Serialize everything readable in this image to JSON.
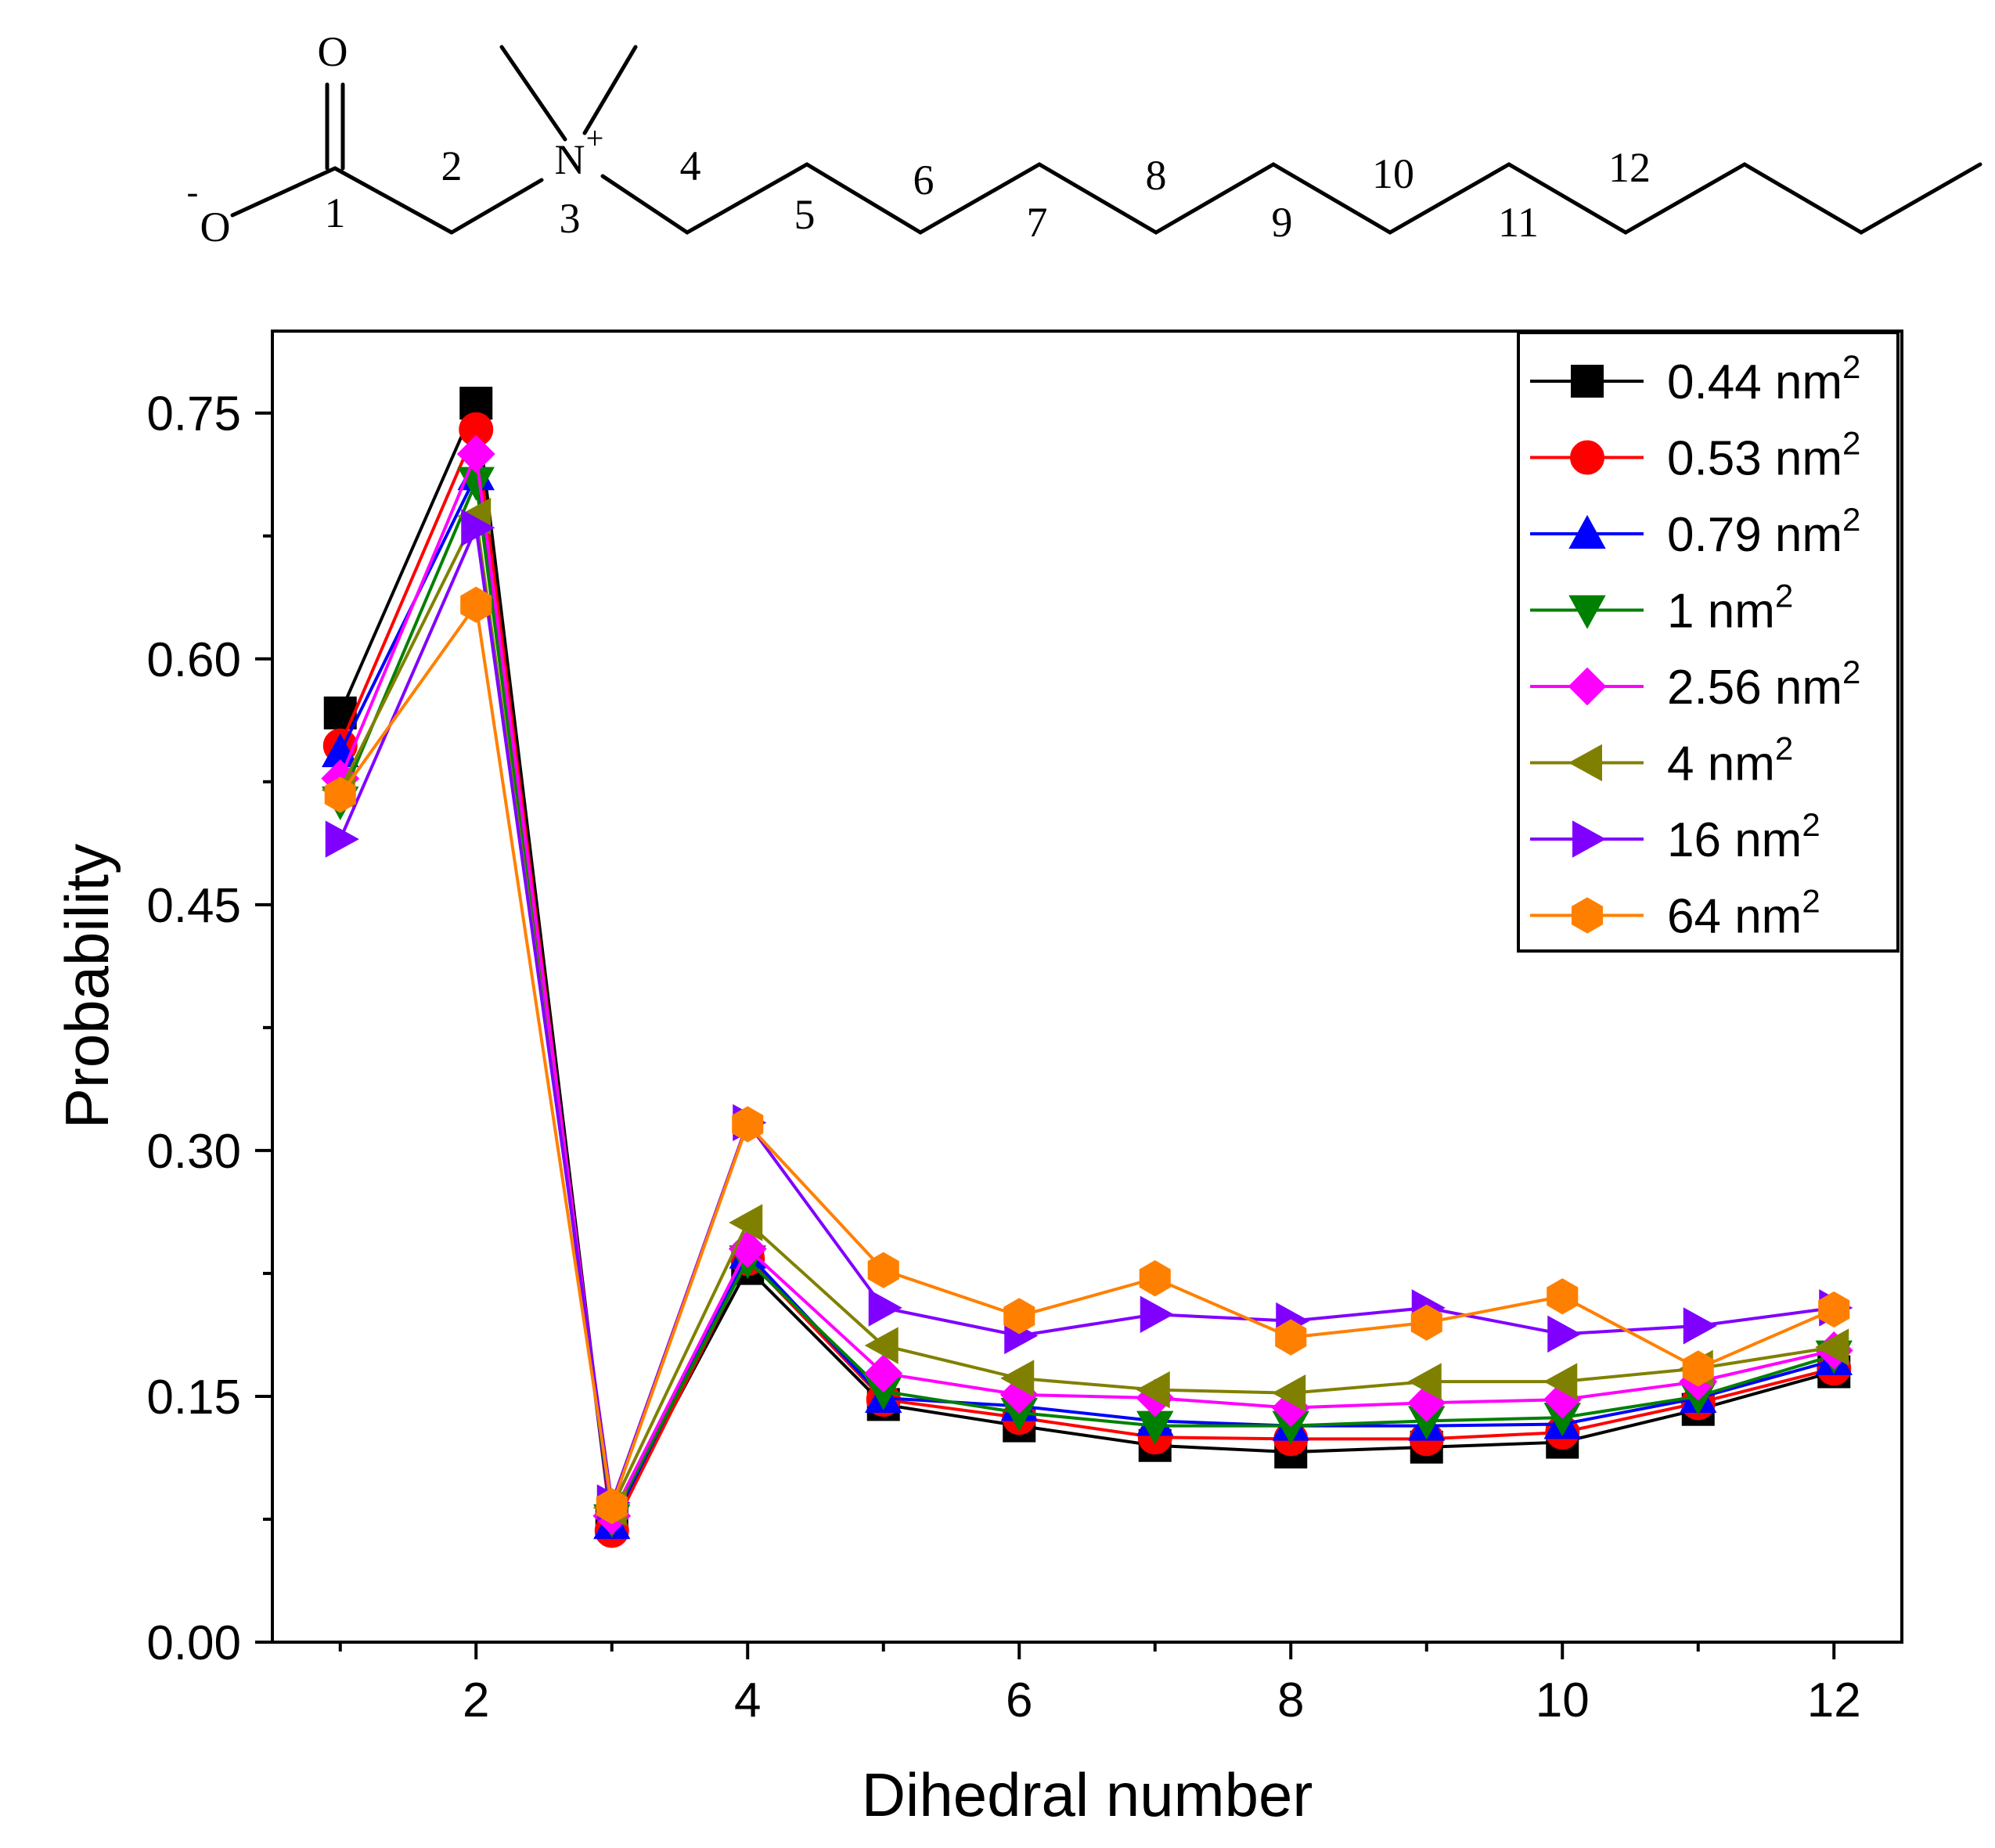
{
  "molecule": {
    "atoms": {
      "o_double": "O",
      "o_minus": "O",
      "o_charge": "-",
      "nitrogen": "N",
      "n_charge": "+"
    },
    "dihedral_labels": [
      "1",
      "2",
      "3",
      "4",
      "5",
      "6",
      "7",
      "8",
      "9",
      "10",
      "11",
      "12"
    ]
  },
  "chart_data": {
    "type": "line",
    "title": "",
    "xlabel": "Dihedral number",
    "ylabel": "Probability",
    "xlim": [
      0.5,
      12.5
    ],
    "ylim": [
      0.0,
      0.8
    ],
    "x": [
      1,
      2,
      3,
      4,
      5,
      6,
      7,
      8,
      9,
      10,
      11,
      12
    ],
    "xticks": [
      2,
      4,
      6,
      8,
      10,
      12
    ],
    "xtick_labels": [
      "2",
      "4",
      "6",
      "8",
      "10",
      "12"
    ],
    "yticks": [
      0.0,
      0.15,
      0.3,
      0.45,
      0.6,
      0.75
    ],
    "ytick_labels": [
      "0.00",
      "0.15",
      "0.30",
      "0.45",
      "0.60",
      "0.75"
    ],
    "legend_position": "top-right",
    "unit": "nm",
    "unit_exponent": "2",
    "series": [
      {
        "name": "0.44",
        "color": "#000000",
        "marker": "square",
        "values": [
          0.567,
          0.756,
          0.073,
          0.228,
          0.145,
          0.132,
          0.12,
          0.116,
          0.119,
          0.122,
          0.142,
          0.165
        ]
      },
      {
        "name": "0.53",
        "color": "#ff0000",
        "marker": "circle",
        "values": [
          0.547,
          0.74,
          0.068,
          0.234,
          0.148,
          0.137,
          0.125,
          0.124,
          0.124,
          0.128,
          0.146,
          0.167
        ]
      },
      {
        "name": "0.79",
        "color": "#0000ff",
        "marker": "triangle-up",
        "values": [
          0.543,
          0.712,
          0.072,
          0.237,
          0.149,
          0.144,
          0.135,
          0.132,
          0.132,
          0.133,
          0.149,
          0.172
        ]
      },
      {
        "name": "1",
        "color": "#008000",
        "marker": "triangle-down",
        "values": [
          0.513,
          0.708,
          0.075,
          0.233,
          0.153,
          0.14,
          0.132,
          0.132,
          0.135,
          0.137,
          0.15,
          0.175
        ]
      },
      {
        "name": "2.56",
        "color": "#ff00ff",
        "marker": "diamond",
        "values": [
          0.527,
          0.725,
          0.077,
          0.24,
          0.164,
          0.151,
          0.149,
          0.143,
          0.146,
          0.148,
          0.159,
          0.178
        ]
      },
      {
        "name": "4",
        "color": "#808000",
        "marker": "triangle-left",
        "values": [
          0.52,
          0.687,
          0.082,
          0.256,
          0.181,
          0.161,
          0.154,
          0.152,
          0.159,
          0.159,
          0.167,
          0.18
        ]
      },
      {
        "name": "16",
        "color": "#8000ff",
        "marker": "triangle-right",
        "values": [
          0.49,
          0.68,
          0.085,
          0.317,
          0.204,
          0.187,
          0.2,
          0.196,
          0.204,
          0.188,
          0.193,
          0.204
        ]
      },
      {
        "name": "64",
        "color": "#ff8000",
        "marker": "hexagon",
        "values": [
          0.517,
          0.633,
          0.083,
          0.316,
          0.227,
          0.199,
          0.222,
          0.186,
          0.195,
          0.211,
          0.167,
          0.203
        ]
      }
    ]
  }
}
